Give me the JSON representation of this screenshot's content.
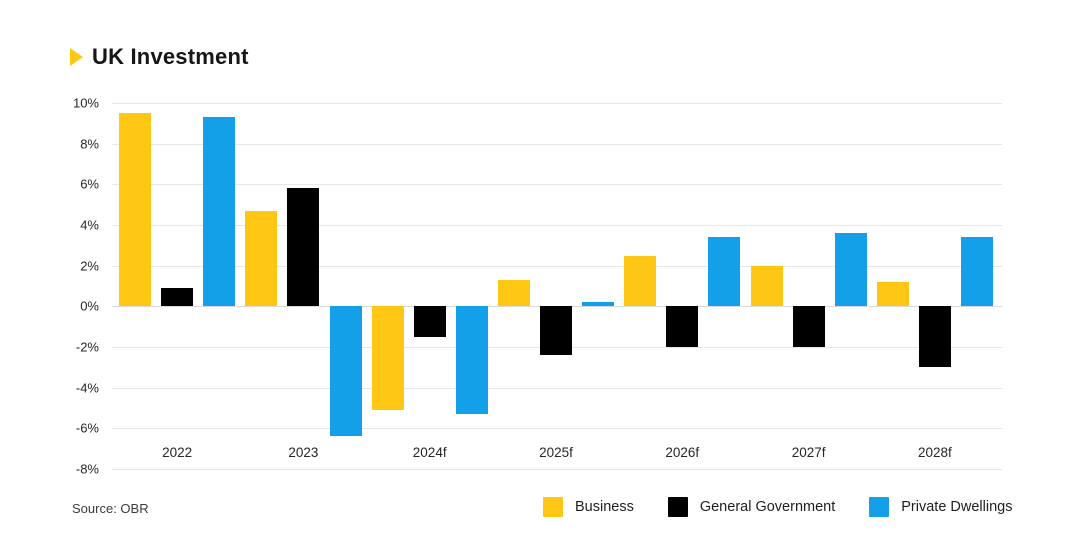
{
  "header": {
    "title": "UK Investment"
  },
  "colors": {
    "accent": "#FFC613",
    "business": "#FFC613",
    "general_government": "#000000",
    "private_dwellings": "#14A0E8",
    "gridline": "#E6E6E6"
  },
  "source": {
    "label": "Source: OBR"
  },
  "chart_data": {
    "type": "bar",
    "title": "UK Investment",
    "categories": [
      "2022",
      "2023",
      "2024f",
      "2025f",
      "2026f",
      "2027f",
      "2028f"
    ],
    "series": [
      {
        "name": "Business",
        "color": "#FFC613",
        "values": [
          9.5,
          4.7,
          -5.1,
          1.3,
          2.5,
          2.0,
          1.2
        ]
      },
      {
        "name": "General Government",
        "color": "#000000",
        "values": [
          0.9,
          5.8,
          -1.5,
          -2.4,
          -2.0,
          -2.0,
          -3.0
        ]
      },
      {
        "name": "Private Dwellings",
        "color": "#14A0E8",
        "values": [
          9.3,
          -6.4,
          -5.3,
          0.2,
          3.4,
          3.6,
          3.4
        ]
      }
    ],
    "xlabel": "",
    "ylabel": "",
    "ylim": [
      -8,
      10
    ],
    "ytick_step": 2,
    "yticks": [
      {
        "value": 10,
        "label": "10%"
      },
      {
        "value": 8,
        "label": "8%"
      },
      {
        "value": 6,
        "label": "6%"
      },
      {
        "value": 4,
        "label": "4%"
      },
      {
        "value": 2,
        "label": "2%"
      },
      {
        "value": 0,
        "label": "0%"
      },
      {
        "value": -2,
        "label": "-2%"
      },
      {
        "value": -4,
        "label": "-4%"
      },
      {
        "value": -6,
        "label": "-6%"
      },
      {
        "value": -8,
        "label": "-8%"
      }
    ],
    "grid": "horizontal",
    "legend_position": "bottom-right",
    "source": "Source: OBR"
  }
}
